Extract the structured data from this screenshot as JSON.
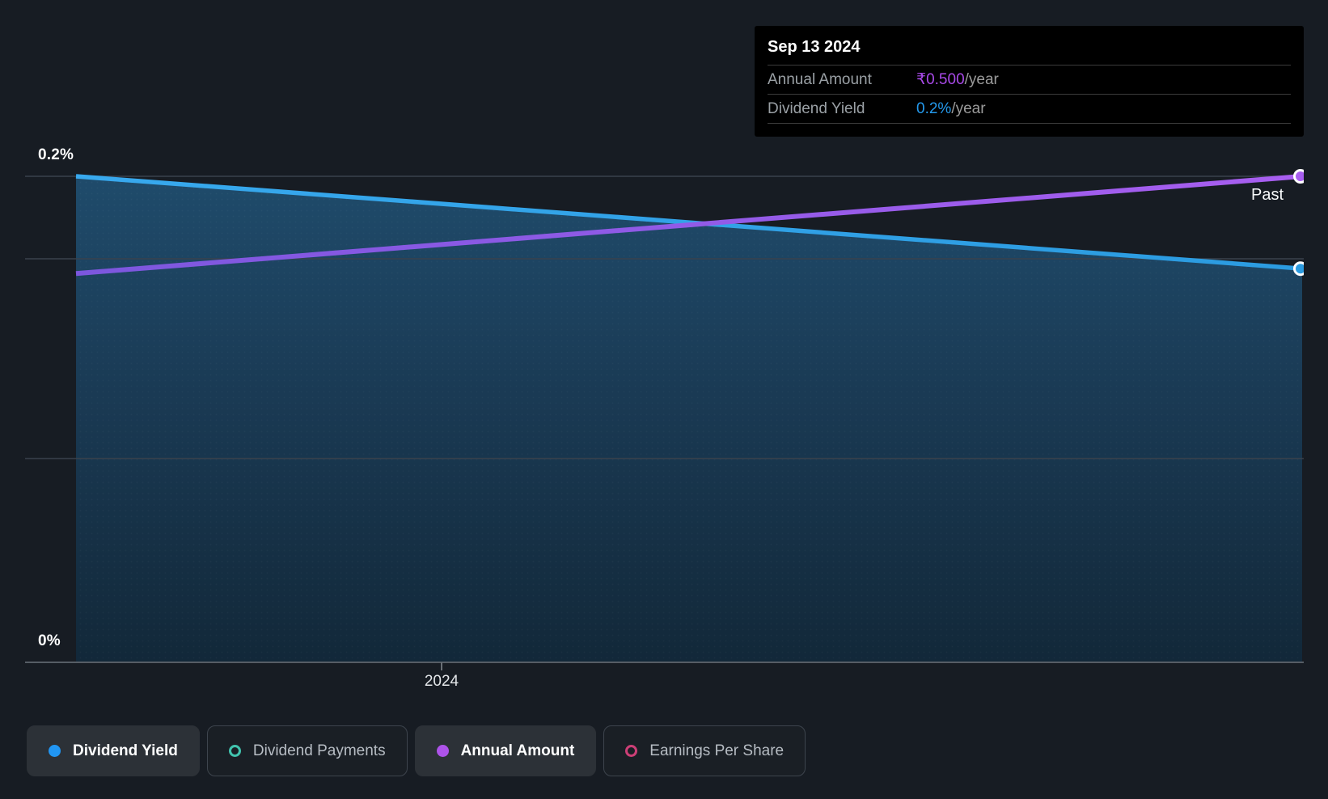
{
  "theme": {
    "background": "#171c23",
    "tooltip_background": "#000000",
    "grid_color": "#3a424c",
    "axis_color": "#565d65"
  },
  "tooltip": {
    "date": "Sep 13 2024",
    "rows": [
      {
        "label": "Annual Amount",
        "value": "₹0.500",
        "suffix": "/year",
        "value_color": "#a94ae9"
      },
      {
        "label": "Dividend Yield",
        "value": "0.2%",
        "suffix": "/year",
        "value_color": "#2499ec"
      }
    ]
  },
  "axis_labels": {
    "y_top": "0.2%",
    "y_bottom": "0%",
    "x_tick": "2024",
    "past": "Past"
  },
  "legend": {
    "items": [
      {
        "label": "Dividend Yield",
        "marker": "filled",
        "color": "#2196f3",
        "active": true
      },
      {
        "label": "Dividend Payments",
        "marker": "outline",
        "color": "#41c3ae",
        "active": false
      },
      {
        "label": "Annual Amount",
        "marker": "filled",
        "color": "#ad53e9",
        "active": true
      },
      {
        "label": "Earnings Per Share",
        "marker": "outline",
        "color": "#cc3f76",
        "active": false
      }
    ]
  },
  "chart_data": {
    "type": "line",
    "x_tick_labels": [
      "2024"
    ],
    "y_tick_labels": [
      "0%",
      "0.2%"
    ],
    "y_axis": {
      "label": "Dividend Yield",
      "min": 0,
      "max": 0.2,
      "unit": "%"
    },
    "secondary_y_axis": {
      "label": "Annual Amount",
      "min": 0,
      "max": 0.5,
      "unit": "₹"
    },
    "annotation": "Past",
    "legend_position": "bottom",
    "grid": true,
    "series": [
      {
        "name": "Dividend Yield",
        "unit": "%",
        "axis_max": 0.2,
        "color_start": "#38a9ee",
        "color_end": "#2b9be0",
        "area_fill": true,
        "end_marker": true,
        "points": [
          {
            "x": 0,
            "y": 0.2
          },
          {
            "x": 1,
            "y": 0.162
          }
        ]
      },
      {
        "name": "Annual Amount",
        "unit": "₹",
        "axis_max": 0.5,
        "color_start": "#7c57de",
        "color_end": "#a85ef0",
        "area_fill": false,
        "end_marker": true,
        "points": [
          {
            "x": 0,
            "y": 0.4
          },
          {
            "x": 1,
            "y": 0.5
          }
        ]
      }
    ]
  }
}
